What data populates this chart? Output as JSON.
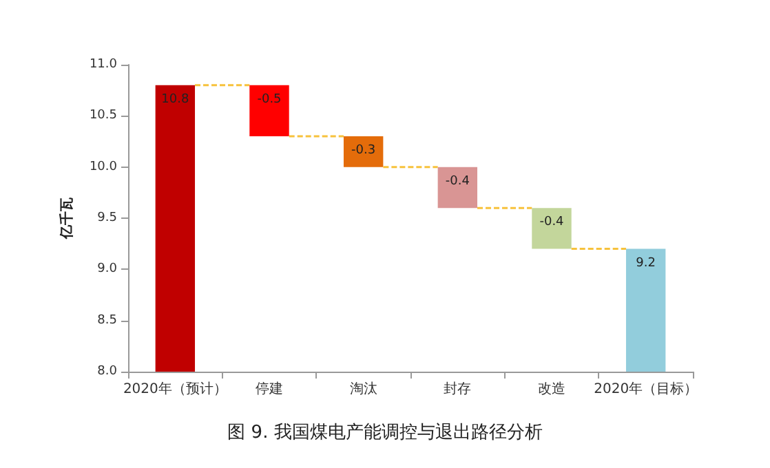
{
  "chart_data": {
    "type": "bar",
    "title": "图 9. 我国煤电产能调控与退出路径分析",
    "ylabel": "亿千瓦",
    "categories": [
      "2020年（预计）",
      "停建",
      "淘汰",
      "封存",
      "改造",
      "2020年（目标）"
    ],
    "values": [
      10.8,
      -0.5,
      -0.3,
      -0.4,
      -0.4,
      9.2
    ],
    "base": [
      null,
      10.8,
      10.3,
      10.0,
      9.6,
      null
    ],
    "colors": [
      "#c00000",
      "#ff0000",
      "#e46c0a",
      "#d99594",
      "#c3d69b",
      "#92cddc"
    ],
    "ylim": [
      8,
      11
    ],
    "yticks": [
      {
        "value": 8,
        "label": "8.0"
      },
      {
        "value": 8.5,
        "label": "8.5"
      },
      {
        "value": 9,
        "label": "9.0"
      },
      {
        "value": 9.5,
        "label": "9.5"
      },
      {
        "value": 10,
        "label": "10.0"
      },
      {
        "value": 10.5,
        "label": "10.5"
      },
      {
        "value": 11,
        "label": "11.0"
      }
    ],
    "data_labels": true
  }
}
